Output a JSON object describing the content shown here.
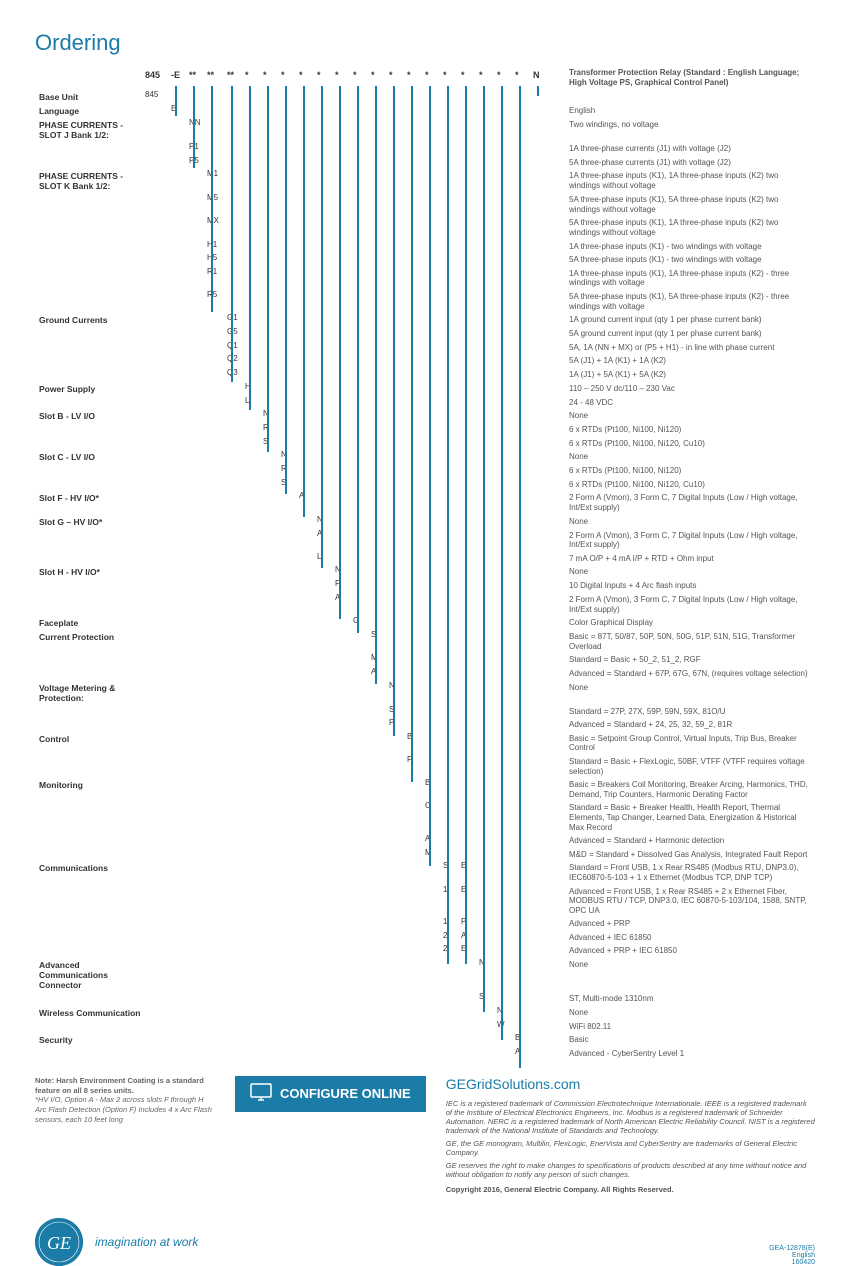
{
  "title": "Ordering",
  "header_code": "845",
  "header_desc": "Transformer Protection Relay (Standard : English Language; High Voltage PS, Graphical Control Panel)",
  "columns": [
    "845",
    "-E",
    "**",
    "**",
    "**",
    "*",
    "*",
    "*",
    "*",
    "*",
    "*",
    "*",
    "*",
    "*",
    "*",
    "*",
    "*",
    "*",
    "*",
    "*",
    "*",
    "N"
  ],
  "sections": [
    {
      "label": "Base Unit",
      "alt": true,
      "rows": [
        {
          "col": 0,
          "code": "845",
          "desc": ""
        }
      ]
    },
    {
      "label": "Language",
      "alt": false,
      "rows": [
        {
          "col": 1,
          "code": "E",
          "desc": "English"
        }
      ]
    },
    {
      "label": "PHASE CURRENTS - SLOT J Bank 1/2:",
      "alt": true,
      "rows": [
        {
          "col": 2,
          "code": "NN",
          "desc": "Two windings, no voltage"
        },
        {
          "col": 2,
          "code": "P1",
          "desc": "1A three-phase currents (J1) with voltage (J2)"
        },
        {
          "col": 2,
          "code": "P5",
          "desc": "5A three-phase currents (J1) with voltage (J2)"
        }
      ]
    },
    {
      "label": "PHASE CURRENTS - SLOT K Bank 1/2:",
      "alt": false,
      "rows": [
        {
          "col": 3,
          "code": "M1",
          "desc": "1A three-phase inputs (K1), 1A three-phase inputs (K2) two windings without voltage"
        },
        {
          "col": 3,
          "code": "M5",
          "desc": "5A three-phase inputs (K1), 5A three-phase inputs (K2) two windings without voltage"
        },
        {
          "col": 3,
          "code": "MX",
          "desc": "5A three-phase inputs (K1), 1A three-phase inputs (K2) two windings without voltage"
        },
        {
          "col": 3,
          "code": "H1",
          "desc": "1A three-phase inputs (K1) - two windings with voltage"
        },
        {
          "col": 3,
          "code": "H5",
          "desc": "5A three-phase inputs (K1) - two windings with voltage"
        },
        {
          "col": 3,
          "code": "R1",
          "desc": "1A three-phase inputs (K1), 1A three-phase inputs (K2) - three windings with voltage"
        },
        {
          "col": 3,
          "code": "R5",
          "desc": "5A three-phase inputs (K1), 5A three-phase inputs (K2) - three windings with voltage"
        }
      ]
    },
    {
      "label": "Ground Currents",
      "alt": true,
      "rows": [
        {
          "col": 4,
          "code": "G1",
          "desc": "1A ground current input (qty 1 per phase current bank)"
        },
        {
          "col": 4,
          "code": "G5",
          "desc": "5A ground current input (qty 1 per phase current bank)"
        },
        {
          "col": 4,
          "code": "Q1",
          "desc": "5A, 1A (NN + MX) or (P5 + H1) - in line with phase current"
        },
        {
          "col": 4,
          "code": "Q2",
          "desc": "5A (J1) + 1A (K1) + 1A (K2)"
        },
        {
          "col": 4,
          "code": "Q3",
          "desc": "1A (J1) + 5A (K1) + 5A (K2)"
        }
      ]
    },
    {
      "label": "Power Supply",
      "alt": false,
      "rows": [
        {
          "col": 5,
          "code": "H",
          "desc": "110 – 250 V dc/110 – 230 Vac"
        },
        {
          "col": 5,
          "code": "L",
          "desc": "24 - 48 VDC"
        }
      ]
    },
    {
      "label": "Slot B - LV I/O",
      "alt": true,
      "rows": [
        {
          "col": 6,
          "code": "N",
          "desc": "None"
        },
        {
          "col": 6,
          "code": "R",
          "desc": "6 x RTDs (Pt100, Ni100, Ni120)"
        },
        {
          "col": 6,
          "code": "S",
          "desc": "6 x RTDs (Pt100, Ni100, Ni120, Cu10)"
        }
      ]
    },
    {
      "label": "Slot C - LV I/O",
      "alt": false,
      "rows": [
        {
          "col": 7,
          "code": "N",
          "desc": "None"
        },
        {
          "col": 7,
          "code": "R",
          "desc": "6 x RTDs (Pt100, Ni100, Ni120)"
        },
        {
          "col": 7,
          "code": "S",
          "desc": "6 x RTDs (Pt100, Ni100, Ni120, Cu10)"
        }
      ]
    },
    {
      "label": "Slot F - HV I/O*",
      "alt": true,
      "rows": [
        {
          "col": 8,
          "code": "A",
          "desc": "2 Form A (Vmon), 3 Form C, 7 Digital Inputs (Low / High voltage, Int/Ext supply)"
        }
      ]
    },
    {
      "label": "Slot G – HV I/O*",
      "alt": false,
      "rows": [
        {
          "col": 9,
          "code": "N",
          "desc": "None"
        },
        {
          "col": 9,
          "code": "A",
          "desc": "2 Form A (Vmon), 3 Form C, 7 Digital Inputs (Low / High voltage, Int/Ext supply)"
        },
        {
          "col": 9,
          "code": "L",
          "desc": "7 mA O/P + 4 mA I/P + RTD + Ohm input"
        }
      ]
    },
    {
      "label": "Slot H - HV I/O*",
      "alt": true,
      "rows": [
        {
          "col": 10,
          "code": "N",
          "desc": "None"
        },
        {
          "col": 10,
          "code": "F",
          "desc": "10 Digital Inputs + 4 Arc flash inputs"
        },
        {
          "col": 10,
          "code": "A",
          "desc": "2 Form A (Vmon), 3 Form C, 7 Digital Inputs (Low / High voltage, Int/Ext supply)"
        }
      ]
    },
    {
      "label": "Faceplate",
      "alt": false,
      "rows": [
        {
          "col": 11,
          "code": "G",
          "desc": "Color Graphical Display"
        }
      ]
    },
    {
      "label": "Current Protection",
      "alt": true,
      "rows": [
        {
          "col": 12,
          "code": "S",
          "desc": "Basic = 87T, 50/87, 50P, 50N, 50G, 51P, 51N, 51G, Transformer Overload"
        },
        {
          "col": 12,
          "code": "M",
          "desc": "Standard = Basic + 50_2, 51_2, RGF"
        },
        {
          "col": 12,
          "code": "A",
          "desc": "Advanced = Standard + 67P, 67G, 67N, (requires voltage selection)"
        }
      ]
    },
    {
      "label": "Voltage Metering & Protection:",
      "alt": false,
      "rows": [
        {
          "col": 13,
          "code": "N",
          "desc": "None"
        },
        {
          "col": 13,
          "code": "S",
          "desc": "Standard = 27P, 27X, 59P, 59N, 59X, 81O/U"
        },
        {
          "col": 13,
          "code": "P",
          "desc": "Advanced = Standard + 24, 25, 32, 59_2, 81R"
        }
      ]
    },
    {
      "label": "Control",
      "alt": true,
      "rows": [
        {
          "col": 14,
          "code": "B",
          "desc": "Basic = Setpoint Group Control, Virtual Inputs, Trip Bus, Breaker Control"
        },
        {
          "col": 14,
          "code": "F",
          "desc": "Standard = Basic + FlexLogic, 50BF, VTFF (VTFF requires voltage selection)"
        }
      ]
    },
    {
      "label": "Monitoring",
      "alt": false,
      "rows": [
        {
          "col": 15,
          "code": "B",
          "desc": "Basic = Breakers Coil Monitoring, Breaker Arcing, Harmonics, THD, Demand, Trip Counters, Harmonic Derating Factor"
        },
        {
          "col": 15,
          "code": "C",
          "desc": "Standard = Basic + Breaker Health, Health Report, Thermal Elements, Tap Changer, Learned Data, Energization & Historical Max Record"
        },
        {
          "col": 15,
          "code": "A",
          "desc": "Advanced = Standard + Harmonic detection"
        },
        {
          "col": 15,
          "code": "M",
          "desc": "M&D = Standard + Dissolved Gas Analysis, Integrated Fault Report"
        }
      ]
    },
    {
      "label": "Communications",
      "alt": true,
      "rows": [
        {
          "col": 16,
          "code": "S",
          "code2col": 17,
          "code2": "E",
          "desc": "Standard = Front USB, 1 x Rear RS485 (Modbus RTU, DNP3.0), IEC60870-5-103 + 1 x Ethernet (Modbus TCP, DNP TCP)"
        },
        {
          "col": 16,
          "code": "1",
          "code2col": 17,
          "code2": "E",
          "desc": "Advanced = Front USB, 1 x Rear RS485 + 2 x Ethernet Fiber, MODBUS RTU / TCP, DNP3.0, IEC 60870-5-103/104, 1588, SNTP, OPC UA"
        },
        {
          "col": 16,
          "code": "1",
          "code2col": 17,
          "code2": "P",
          "desc": "Advanced + PRP"
        },
        {
          "col": 16,
          "code": "2",
          "code2col": 17,
          "code2": "A",
          "desc": "Advanced + IEC 61850"
        },
        {
          "col": 16,
          "code": "2",
          "code2col": 17,
          "code2": "E",
          "desc": "Advanced + PRP + IEC 61850"
        }
      ]
    },
    {
      "label": "Advanced Communications Connector",
      "alt": false,
      "rows": [
        {
          "col": 18,
          "code": "N",
          "desc": "None"
        },
        {
          "col": 18,
          "code": "S",
          "desc": "ST, Multi-mode 1310nm"
        }
      ]
    },
    {
      "label": "Wireless Communication",
      "alt": true,
      "rows": [
        {
          "col": 19,
          "code": "N",
          "desc": "None"
        },
        {
          "col": 19,
          "code": "W",
          "desc": "WiFi 802.11"
        }
      ]
    },
    {
      "label": "Security",
      "alt": false,
      "rows": [
        {
          "col": 20,
          "code": "B",
          "desc": "Basic"
        },
        {
          "col": 20,
          "code": "A",
          "desc": "Advanced - CyberSentry Level 1"
        }
      ]
    }
  ],
  "footer_note": "Note: Harsh Environment Coating is a standard feature on all 8 series units.",
  "footer_note2": "*HV I/O, Option A - Max 2 across slots F through H",
  "footer_note3": "Arc Flash Detection (Option F) Includes 4 x Arc Flash sensors, each 10 feet long",
  "config_btn": "CONFIGURE ONLINE",
  "url": "GEGridSolutions.com",
  "legal1": "IEC is a registered trademark of Commission Electrotechnique Internationale. IEEE is a registered trademark of the Institute of Electrical Electronics Engineers, Inc. Modbus is a registered trademark of Schneider Automation. NERC is a registered trademark of North American Electric Reliability Council. NIST is a registered trademark of the National Institute of Standards and Technology.",
  "legal2": "GE, the GE monogram, Multilin, FlexLogic, EnerVista and CyberSentry are trademarks of General Electric Company.",
  "legal3": "GE reserves the right to make changes to specifications of products described at any time without notice and without obligation to notify any person of such changes.",
  "copyright": "Copyright 2016, General Electric Company. All Rights Reserved.",
  "tagline": "imagination at work",
  "docinfo": "GEA-12878(E)\nEnglish\n160420",
  "col_offsets": [
    0,
    26,
    44,
    62,
    82,
    100,
    118,
    136,
    154,
    172,
    190,
    208,
    226,
    244,
    262,
    280,
    298,
    316,
    334,
    352,
    370,
    388
  ]
}
